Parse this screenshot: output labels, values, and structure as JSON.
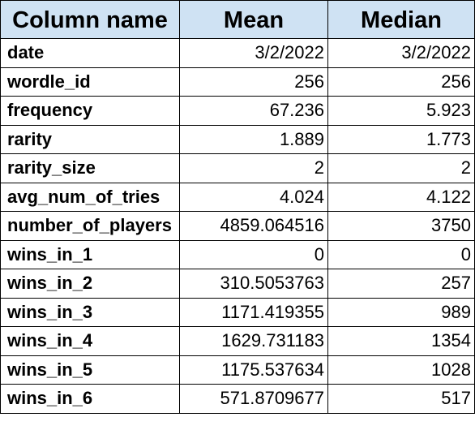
{
  "table": {
    "headers": [
      "Column name",
      "Mean",
      "Median"
    ],
    "rows": [
      {
        "name": "date",
        "mean": "3/2/2022",
        "median": "3/2/2022"
      },
      {
        "name": "wordle_id",
        "mean": "256",
        "median": "256"
      },
      {
        "name": "frequency",
        "mean": "67.236",
        "median": "5.923"
      },
      {
        "name": "rarity",
        "mean": "1.889",
        "median": "1.773"
      },
      {
        "name": "rarity_size",
        "mean": "2",
        "median": "2"
      },
      {
        "name": "avg_num_of_tries",
        "mean": "4.024",
        "median": "4.122"
      },
      {
        "name": "number_of_players",
        "mean": "4859.064516",
        "median": "3750"
      },
      {
        "name": "wins_in_1",
        "mean": "0",
        "median": "0"
      },
      {
        "name": "wins_in_2",
        "mean": "310.5053763",
        "median": "257"
      },
      {
        "name": "wins_in_3",
        "mean": "1171.419355",
        "median": "989"
      },
      {
        "name": "wins_in_4",
        "mean": "1629.731183",
        "median": "1354"
      },
      {
        "name": "wins_in_5",
        "mean": "1175.537634",
        "median": "1028"
      },
      {
        "name": "wins_in_6",
        "mean": "571.8709677",
        "median": "517"
      }
    ]
  },
  "colors": {
    "header_background": "#cfe2f3",
    "border": "#000000"
  }
}
